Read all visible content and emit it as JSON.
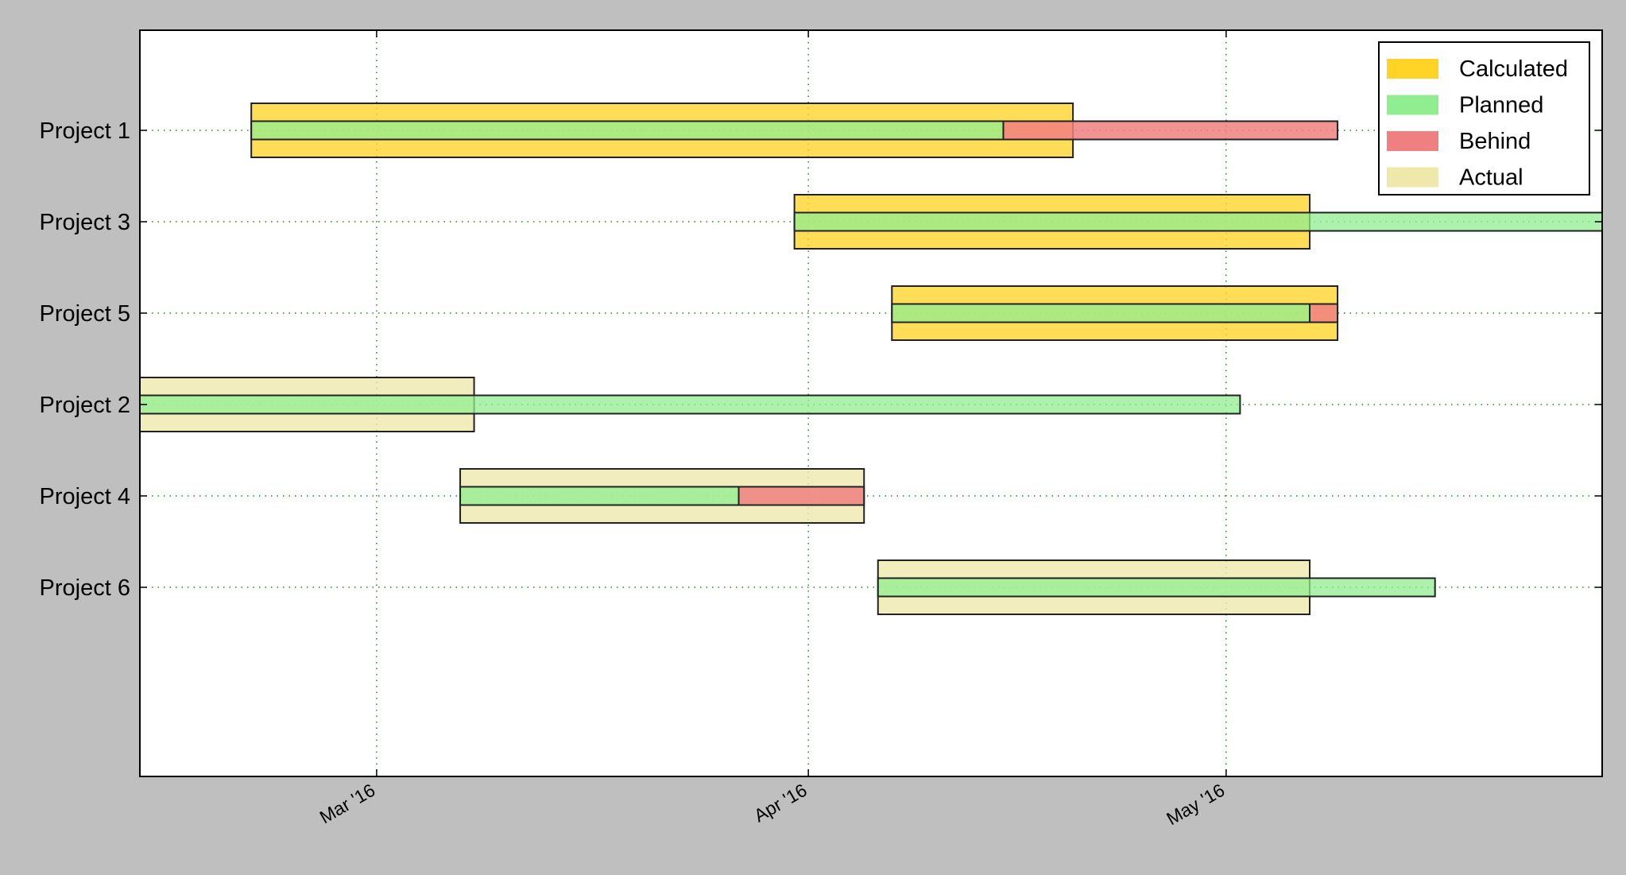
{
  "chart_data": {
    "type": "gantt",
    "x_axis": {
      "type": "date",
      "range": [
        "2016-02-13",
        "2016-05-28"
      ],
      "ticks": [
        {
          "date": "2016-03-01",
          "label": "Mar '16"
        },
        {
          "date": "2016-04-01",
          "label": "Apr '16"
        },
        {
          "date": "2016-05-01",
          "label": "May '16"
        }
      ],
      "tick_label_rotation_deg": 30
    },
    "grid": true,
    "categories": [
      "Project 1",
      "Project 3",
      "Project 5",
      "Project 2",
      "Project 4",
      "Project 6"
    ],
    "legend": {
      "placement": "top-right",
      "entries": [
        {
          "label": "Calculated",
          "color": "#ffd426"
        },
        {
          "label": "Planned",
          "color": "#90ee90"
        },
        {
          "label": "Behind",
          "color": "#f08080"
        },
        {
          "label": "Actual",
          "color": "#eee8aa"
        }
      ]
    },
    "tasks": [
      {
        "project": "Project 1",
        "wide_kind": "Calculated",
        "wide": [
          "2016-02-21",
          "2016-04-20"
        ],
        "planned": [
          "2016-02-21",
          "2016-04-15"
        ],
        "behind": [
          "2016-04-15",
          "2016-05-09"
        ]
      },
      {
        "project": "Project 3",
        "wide_kind": "Calculated",
        "wide": [
          "2016-03-31",
          "2016-05-07"
        ],
        "planned": [
          "2016-03-31",
          "2016-05-28"
        ],
        "behind": null
      },
      {
        "project": "Project 5",
        "wide_kind": "Calculated",
        "wide": [
          "2016-04-07",
          "2016-05-09"
        ],
        "planned": [
          "2016-04-07",
          "2016-05-07"
        ],
        "behind": [
          "2016-05-07",
          "2016-05-09"
        ]
      },
      {
        "project": "Project 2",
        "wide_kind": "Actual",
        "wide": [
          "2016-02-13",
          "2016-03-08"
        ],
        "planned": [
          "2016-02-13",
          "2016-05-02"
        ],
        "behind": null
      },
      {
        "project": "Project 4",
        "wide_kind": "Actual",
        "wide": [
          "2016-03-07",
          "2016-04-05"
        ],
        "planned": [
          "2016-03-07",
          "2016-03-27"
        ],
        "behind": [
          "2016-03-27",
          "2016-04-05"
        ]
      },
      {
        "project": "Project 6",
        "wide_kind": "Actual",
        "wide": [
          "2016-04-06",
          "2016-05-07"
        ],
        "planned": [
          "2016-04-06",
          "2016-05-16"
        ],
        "behind": null
      }
    ]
  }
}
